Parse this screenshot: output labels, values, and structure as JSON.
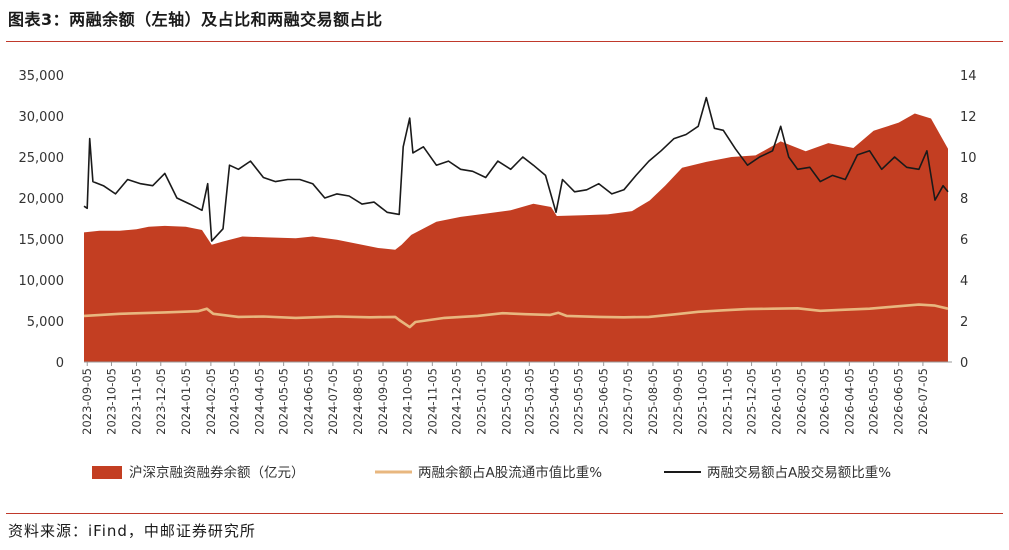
{
  "header": {
    "title": "图表3：两融余额（左轴）及占比和两融交易额占比"
  },
  "footer": {
    "source": "资料来源：iFind，中邮证券研究所"
  },
  "colors": {
    "area": "#C33E22",
    "ratio_line": "#E8B77F",
    "turnover_line": "#1a1a1a",
    "rule": "#c0392b"
  },
  "chart_data": {
    "type": "area",
    "title": "",
    "x_labels": [
      "2023-09-05",
      "2023-10-05",
      "2023-11-05",
      "2023-12-05",
      "2024-01-05",
      "2024-02-05",
      "2024-03-05",
      "2024-04-05",
      "2024-05-05",
      "2024-06-05",
      "2024-07-05",
      "2024-08-05",
      "2024-09-05",
      "2024-10-05",
      "2024-11-05",
      "2024-12-05",
      "2025-01-05",
      "2025-02-05",
      "2025-03-05",
      "2025-04-05",
      "2025-05-05",
      "2025-06-05",
      "2025-07-05",
      "2025-08-05",
      "2025-09-05",
      "2025-10-05",
      "2025-11-05",
      "2025-12-05",
      "2026-01-05",
      "2026-02-05",
      "2026-03-05",
      "2026-04-05",
      "2026-05-05",
      "2026-06-05",
      "2026-07-05"
    ],
    "x_range": [
      "2023-09-01",
      "2026-08-10"
    ],
    "y_left": {
      "min": 0,
      "max": 35000,
      "ticks": [
        0,
        5000,
        10000,
        15000,
        20000,
        25000,
        30000,
        35000
      ],
      "tick_labels": [
        "0",
        "5,000",
        "10,000",
        "15,000",
        "20,000",
        "25,000",
        "30,000",
        "35,000"
      ]
    },
    "y_right": {
      "min": 0,
      "max": 14,
      "ticks": [
        0,
        2,
        4,
        6,
        8,
        10,
        12,
        14
      ],
      "tick_labels": [
        "0",
        "2",
        "4",
        "6",
        "8",
        "10",
        "12",
        "14"
      ]
    },
    "grid": false,
    "legend_position": "bottom",
    "series": [
      {
        "name": "沪深京融资融券余额（亿元）",
        "type": "area",
        "axis": "left",
        "points": [
          [
            "2023-09-01",
            15800
          ],
          [
            "2023-09-20",
            16000
          ],
          [
            "2023-10-15",
            16000
          ],
          [
            "2023-11-05",
            16200
          ],
          [
            "2023-11-20",
            16500
          ],
          [
            "2023-12-10",
            16600
          ],
          [
            "2024-01-05",
            16500
          ],
          [
            "2024-01-25",
            16100
          ],
          [
            "2024-02-06",
            14300
          ],
          [
            "2024-02-20",
            14700
          ],
          [
            "2024-03-15",
            15300
          ],
          [
            "2024-04-15",
            15200
          ],
          [
            "2024-05-20",
            15100
          ],
          [
            "2024-06-10",
            15300
          ],
          [
            "2024-07-10",
            14900
          ],
          [
            "2024-08-10",
            14300
          ],
          [
            "2024-08-30",
            13900
          ],
          [
            "2024-09-20",
            13700
          ],
          [
            "2024-09-28",
            14300
          ],
          [
            "2024-10-10",
            15500
          ],
          [
            "2024-11-10",
            17100
          ],
          [
            "2024-12-10",
            17700
          ],
          [
            "2025-01-10",
            18100
          ],
          [
            "2025-02-10",
            18500
          ],
          [
            "2025-03-10",
            19300
          ],
          [
            "2025-04-01",
            18900
          ],
          [
            "2025-04-08",
            17800
          ],
          [
            "2025-05-10",
            17900
          ],
          [
            "2025-06-10",
            18000
          ],
          [
            "2025-07-10",
            18400
          ],
          [
            "2025-08-01",
            19700
          ],
          [
            "2025-08-20",
            21500
          ],
          [
            "2025-09-10",
            23700
          ],
          [
            "2025-10-10",
            24400
          ],
          [
            "2025-11-10",
            25000
          ],
          [
            "2025-12-10",
            25200
          ],
          [
            "2026-01-10",
            26900
          ],
          [
            "2026-02-10",
            25700
          ],
          [
            "2026-03-10",
            26700
          ],
          [
            "2026-04-10",
            26100
          ],
          [
            "2026-05-05",
            28200
          ],
          [
            "2026-06-05",
            29200
          ],
          [
            "2026-06-25",
            30300
          ],
          [
            "2026-07-15",
            29700
          ],
          [
            "2026-08-05",
            26000
          ]
        ]
      },
      {
        "name": "两融余额占A股流通市值比重%",
        "type": "line",
        "axis": "right",
        "points": [
          [
            "2023-09-01",
            2.25
          ],
          [
            "2023-10-15",
            2.35
          ],
          [
            "2023-12-10",
            2.42
          ],
          [
            "2024-01-20",
            2.48
          ],
          [
            "2024-01-31",
            2.6
          ],
          [
            "2024-02-08",
            2.35
          ],
          [
            "2024-03-10",
            2.2
          ],
          [
            "2024-04-10",
            2.22
          ],
          [
            "2024-05-20",
            2.15
          ],
          [
            "2024-07-10",
            2.22
          ],
          [
            "2024-08-20",
            2.18
          ],
          [
            "2024-09-20",
            2.2
          ],
          [
            "2024-09-25",
            2.05
          ],
          [
            "2024-10-08",
            1.7
          ],
          [
            "2024-10-15",
            1.95
          ],
          [
            "2024-11-20",
            2.15
          ],
          [
            "2024-12-31",
            2.25
          ],
          [
            "2025-01-31",
            2.38
          ],
          [
            "2025-02-28",
            2.33
          ],
          [
            "2025-03-31",
            2.3
          ],
          [
            "2025-04-10",
            2.4
          ],
          [
            "2025-04-20",
            2.25
          ],
          [
            "2025-05-31",
            2.2
          ],
          [
            "2025-06-30",
            2.18
          ],
          [
            "2025-07-31",
            2.2
          ],
          [
            "2025-08-31",
            2.32
          ],
          [
            "2025-09-30",
            2.45
          ],
          [
            "2025-10-31",
            2.52
          ],
          [
            "2025-11-30",
            2.58
          ],
          [
            "2025-12-31",
            2.6
          ],
          [
            "2026-01-31",
            2.62
          ],
          [
            "2026-02-28",
            2.5
          ],
          [
            "2026-03-31",
            2.55
          ],
          [
            "2026-04-30",
            2.6
          ],
          [
            "2026-05-31",
            2.7
          ],
          [
            "2026-06-30",
            2.8
          ],
          [
            "2026-07-20",
            2.75
          ],
          [
            "2026-08-05",
            2.6
          ]
        ]
      },
      {
        "name": "两融交易额占A股交易额比重%",
        "type": "line",
        "axis": "right",
        "points": [
          [
            "2023-09-01",
            7.6
          ],
          [
            "2023-09-05",
            7.5
          ],
          [
            "2023-09-08",
            10.9
          ],
          [
            "2023-09-12",
            8.8
          ],
          [
            "2023-09-25",
            8.6
          ],
          [
            "2023-10-10",
            8.2
          ],
          [
            "2023-10-25",
            8.9
          ],
          [
            "2023-11-10",
            8.7
          ],
          [
            "2023-11-25",
            8.6
          ],
          [
            "2023-12-10",
            9.2
          ],
          [
            "2023-12-25",
            8.0
          ],
          [
            "2024-01-10",
            7.7
          ],
          [
            "2024-01-25",
            7.4
          ],
          [
            "2024-02-01",
            8.7
          ],
          [
            "2024-02-06",
            5.9
          ],
          [
            "2024-02-20",
            6.5
          ],
          [
            "2024-02-28",
            9.6
          ],
          [
            "2024-03-10",
            9.4
          ],
          [
            "2024-03-25",
            9.8
          ],
          [
            "2024-04-10",
            9.0
          ],
          [
            "2024-04-25",
            8.8
          ],
          [
            "2024-05-10",
            8.9
          ],
          [
            "2024-05-25",
            8.9
          ],
          [
            "2024-06-10",
            8.7
          ],
          [
            "2024-06-25",
            8.0
          ],
          [
            "2024-07-10",
            8.2
          ],
          [
            "2024-07-25",
            8.1
          ],
          [
            "2024-08-10",
            7.7
          ],
          [
            "2024-08-25",
            7.8
          ],
          [
            "2024-09-10",
            7.3
          ],
          [
            "2024-09-25",
            7.2
          ],
          [
            "2024-09-30",
            10.5
          ],
          [
            "2024-10-08",
            11.9
          ],
          [
            "2024-10-12",
            10.2
          ],
          [
            "2024-10-25",
            10.5
          ],
          [
            "2024-11-10",
            9.6
          ],
          [
            "2024-11-25",
            9.8
          ],
          [
            "2024-12-10",
            9.4
          ],
          [
            "2024-12-25",
            9.3
          ],
          [
            "2025-01-10",
            9.0
          ],
          [
            "2025-01-25",
            9.8
          ],
          [
            "2025-02-10",
            9.4
          ],
          [
            "2025-02-25",
            10.0
          ],
          [
            "2025-03-10",
            9.6
          ],
          [
            "2025-03-25",
            9.1
          ],
          [
            "2025-04-07",
            7.3
          ],
          [
            "2025-04-15",
            8.9
          ],
          [
            "2025-04-30",
            8.3
          ],
          [
            "2025-05-15",
            8.4
          ],
          [
            "2025-05-30",
            8.7
          ],
          [
            "2025-06-15",
            8.2
          ],
          [
            "2025-06-30",
            8.4
          ],
          [
            "2025-07-15",
            9.1
          ],
          [
            "2025-07-31",
            9.8
          ],
          [
            "2025-08-15",
            10.3
          ],
          [
            "2025-08-31",
            10.9
          ],
          [
            "2025-09-15",
            11.1
          ],
          [
            "2025-09-30",
            11.5
          ],
          [
            "2025-10-10",
            12.9
          ],
          [
            "2025-10-20",
            11.4
          ],
          [
            "2025-10-31",
            11.3
          ],
          [
            "2025-11-15",
            10.4
          ],
          [
            "2025-11-30",
            9.6
          ],
          [
            "2025-12-15",
            10.0
          ],
          [
            "2025-12-31",
            10.3
          ],
          [
            "2026-01-10",
            11.5
          ],
          [
            "2026-01-20",
            10.0
          ],
          [
            "2026-01-31",
            9.4
          ],
          [
            "2026-02-15",
            9.5
          ],
          [
            "2026-02-28",
            8.8
          ],
          [
            "2026-03-15",
            9.1
          ],
          [
            "2026-03-31",
            8.9
          ],
          [
            "2026-04-15",
            10.1
          ],
          [
            "2026-04-30",
            10.3
          ],
          [
            "2026-05-15",
            9.4
          ],
          [
            "2026-05-31",
            10.0
          ],
          [
            "2026-06-15",
            9.5
          ],
          [
            "2026-06-30",
            9.4
          ],
          [
            "2026-07-10",
            10.3
          ],
          [
            "2026-07-20",
            7.9
          ],
          [
            "2026-07-30",
            8.6
          ],
          [
            "2026-08-05",
            8.3
          ]
        ]
      }
    ]
  }
}
